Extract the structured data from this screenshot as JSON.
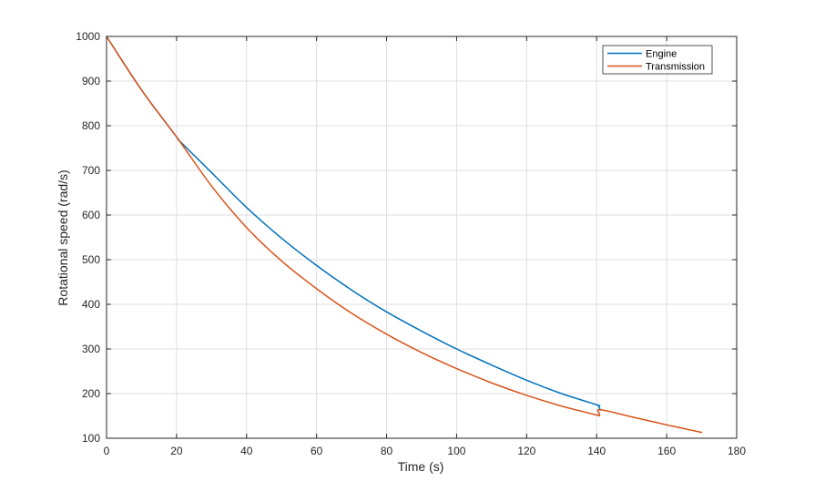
{
  "chart_data": {
    "type": "line",
    "title": "",
    "xlabel": "Time (s)",
    "ylabel": "Rotational speed (rad/s)",
    "xlim": [
      0,
      180
    ],
    "ylim": [
      100,
      1000
    ],
    "xticks": [
      0,
      20,
      40,
      60,
      80,
      100,
      120,
      140,
      160,
      180
    ],
    "yticks": [
      100,
      200,
      300,
      400,
      500,
      600,
      700,
      800,
      900,
      1000
    ],
    "xtick_labels": [
      "0",
      "20",
      "40",
      "60",
      "80",
      "100",
      "120",
      "140",
      "160",
      "180"
    ],
    "ytick_labels": [
      "100",
      "200",
      "300",
      "400",
      "500",
      "600",
      "700",
      "800",
      "900",
      "1000"
    ],
    "grid": true,
    "legend_position": "top-right",
    "series": [
      {
        "name": "Engine",
        "color": "#0072BD",
        "x": [
          0,
          10,
          20,
          21,
          30,
          40,
          50,
          60,
          70,
          80,
          90,
          100,
          110,
          120,
          130,
          140,
          140.5,
          140.8,
          141
        ],
        "y": [
          1000,
          880,
          775,
          765,
          695,
          617,
          548,
          487,
          432,
          383,
          340,
          300,
          264,
          230,
          200,
          175,
          173,
          168,
          163
        ]
      },
      {
        "name": "Transmission",
        "color": "#D95319",
        "x": [
          0,
          10,
          20,
          30,
          40,
          50,
          60,
          70,
          80,
          90,
          100,
          110,
          120,
          130,
          140,
          140.5,
          140.8,
          141,
          150,
          160,
          170
        ],
        "y": [
          1000,
          880,
          775,
          665,
          572,
          497,
          435,
          380,
          333,
          292,
          256,
          224,
          196,
          172,
          152,
          152,
          155,
          164,
          148,
          130,
          113
        ]
      }
    ]
  }
}
